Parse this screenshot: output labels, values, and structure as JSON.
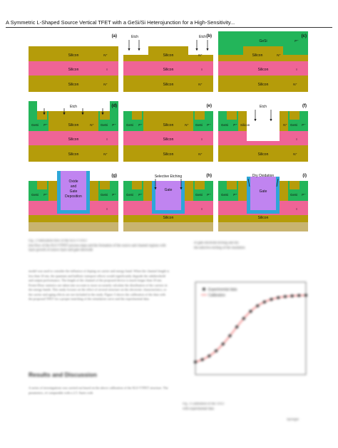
{
  "header": {
    "running_title": "A Symmetric L-Shaped Source Vertical TFET with a GeSi/Si Heterojunction for a High-Sensitivity..."
  },
  "figure_process": {
    "panels": [
      "(a)",
      "(b)",
      "(c)",
      "(d)",
      "(e)",
      "(f)",
      "(g)",
      "(h)",
      "(i)"
    ],
    "labels": {
      "silicon": "Silicon",
      "gesi": "GeSi",
      "n_plus": "N⁺",
      "p_plus": "P⁺",
      "i": "I",
      "etch": "Etch",
      "oxide_gate": [
        "Oxide",
        "and",
        "Gate",
        "Deposition"
      ],
      "gate": "Gate",
      "selective_etching": "Selective Etching",
      "dry_oxidation": "Dry Oxidation"
    },
    "colors": {
      "silicon_olive": "#b59c0a",
      "silicon_pink": "#ef6496",
      "gesi_green": "#23b55a",
      "gate_purple": "#c084f0",
      "oxide_blue": "#2ea6d8",
      "sub_grey": "#b0a060"
    }
  },
  "figure_calib": {
    "legend": [
      "Experimental data",
      "Calibration"
    ],
    "colors": {
      "data": "#333333",
      "fit": "#f49a9a"
    }
  },
  "blurred": {
    "fig_caption": "Fig. 2 Fabrication flow of the SLS-VTFET",
    "sec_heading": "Results and Discussion",
    "fig_caption_right": "Fig. 3 Calibration of the TFET",
    "logo": "Springer"
  }
}
